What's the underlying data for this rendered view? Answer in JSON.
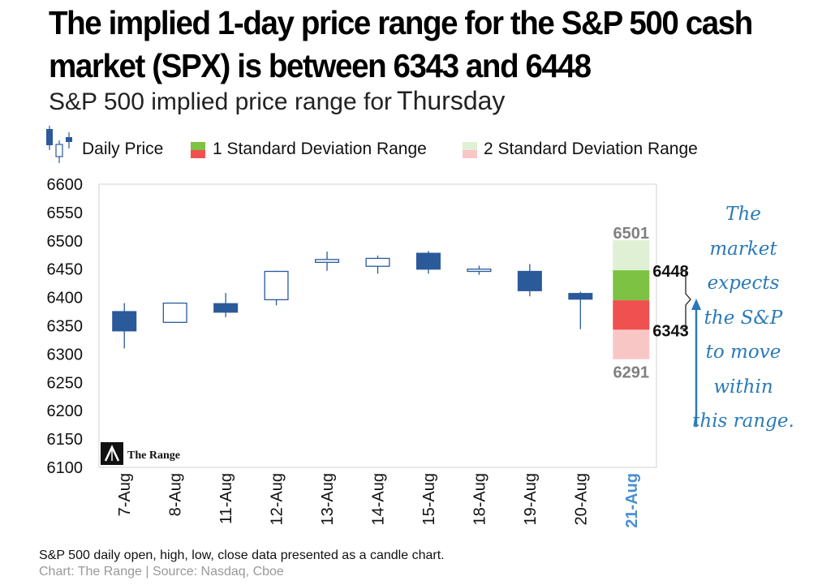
{
  "headline_line1": "The implied 1-day price range for the S&P 500 cash",
  "headline_line2": "market (SPX) is between 6343 and 6448",
  "subtitle": "S&P 500 implied price range for",
  "subtitle_day": "Thursday",
  "legend": {
    "daily_price": "Daily Price",
    "sd1": "1 Standard Deviation Range",
    "sd2": "2 Standard Deviation Range"
  },
  "annotation": [
    "The",
    "market",
    "expects",
    "the S&P",
    "to move",
    "within",
    "this range."
  ],
  "watermark": "The Range",
  "footnote": "S&P 500 daily open, high, low, close data presented as a candle chart.",
  "source": "Chart: The Range | Source: Nasdaq, Cboe",
  "colors": {
    "down_candle": "#2a5a9a",
    "up_candle": "#ffffff",
    "candle_outline": "#2a5a9a",
    "sd1_upper": "#7dc242",
    "sd1_lower": "#f05050",
    "sd2_upper": "#e0f0d4",
    "sd2_lower": "#f9c6c6",
    "forecast_label": "#4a8fd0",
    "annotation": "#2a7ab8"
  },
  "chart_data": {
    "type": "candlestick",
    "title": "The implied 1-day price range for the S&P 500 cash market (SPX) is between 6343 and 6448",
    "subtitle": "S&P 500 implied price range for Thursday",
    "xlabel": "",
    "ylabel": "",
    "ylim": [
      6100,
      6600
    ],
    "yticks": [
      6600,
      6550,
      6500,
      6450,
      6400,
      6350,
      6300,
      6250,
      6200,
      6150,
      6100
    ],
    "grid": false,
    "legend_position": "top",
    "categories": [
      "7-Aug",
      "8-Aug",
      "11-Aug",
      "12-Aug",
      "13-Aug",
      "14-Aug",
      "15-Aug",
      "18-Aug",
      "19-Aug",
      "20-Aug",
      "21-Aug"
    ],
    "series": [
      {
        "name": "Daily Price",
        "ohlc": [
          {
            "date": "7-Aug",
            "open": 6375,
            "high": 6390,
            "low": 6310,
            "close": 6341
          },
          {
            "date": "8-Aug",
            "open": 6356,
            "high": 6391,
            "low": 6356,
            "close": 6390
          },
          {
            "date": "11-Aug",
            "open": 6389,
            "high": 6408,
            "low": 6365,
            "close": 6374
          },
          {
            "date": "12-Aug",
            "open": 6396,
            "high": 6447,
            "low": 6386,
            "close": 6446
          },
          {
            "date": "13-Aug",
            "open": 6462,
            "high": 6481,
            "low": 6447,
            "close": 6467
          },
          {
            "date": "14-Aug",
            "open": 6455,
            "high": 6474,
            "low": 6442,
            "close": 6469
          },
          {
            "date": "15-Aug",
            "open": 6478,
            "high": 6482,
            "low": 6442,
            "close": 6450
          },
          {
            "date": "18-Aug",
            "open": 6446,
            "high": 6456,
            "low": 6440,
            "close": 6450
          },
          {
            "date": "19-Aug",
            "open": 6446,
            "high": 6459,
            "low": 6402,
            "close": 6412
          },
          {
            "date": "20-Aug",
            "open": 6407,
            "high": 6410,
            "low": 6344,
            "close": 6397
          }
        ]
      },
      {
        "name": "1 Standard Deviation Range",
        "date": "21-Aug",
        "low": 6343,
        "mid": 6395,
        "high": 6448
      },
      {
        "name": "2 Standard Deviation Range",
        "date": "21-Aug",
        "low": 6291,
        "high": 6501
      }
    ],
    "labels": {
      "sd2_high": "6501",
      "sd1_high": "6448",
      "sd1_low": "6343",
      "sd2_low": "6291"
    }
  }
}
